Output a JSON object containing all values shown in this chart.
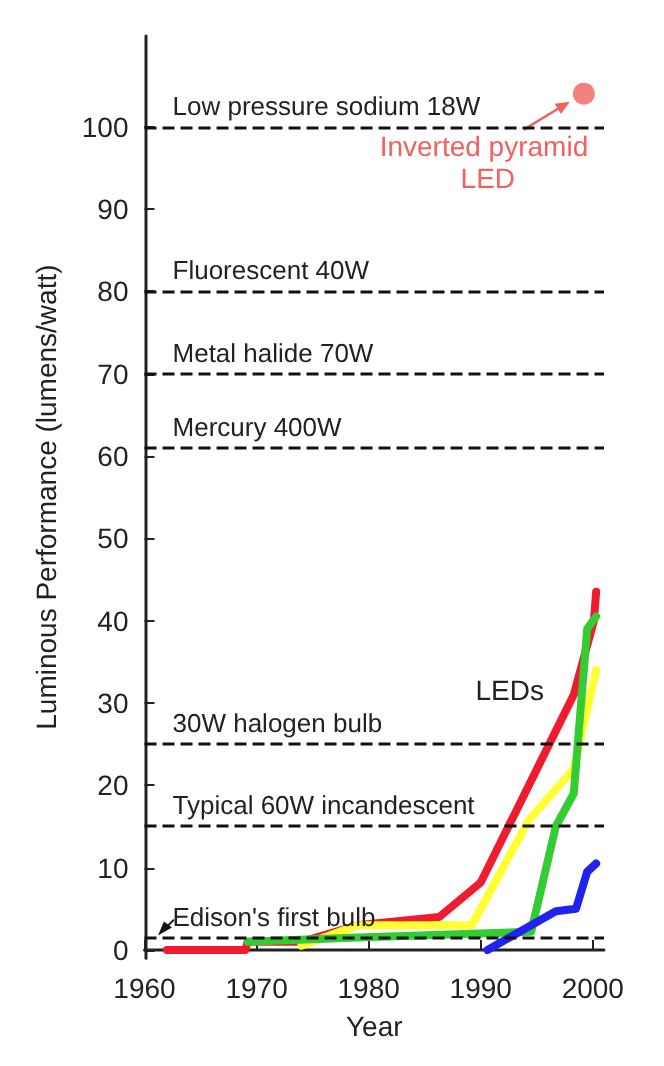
{
  "chart_data": {
    "type": "line",
    "xlabel": "Year",
    "ylabel": "Luminous Performance (lumens/watt)",
    "xlim": [
      1960,
      2001
    ],
    "xticks": [
      1960,
      1970,
      1980,
      1990,
      2000
    ],
    "ylim": [
      -1,
      111
    ],
    "yticks": [
      0,
      10,
      20,
      30,
      40,
      50,
      60,
      70,
      80,
      90,
      100
    ],
    "grid": false,
    "marker": "none",
    "line_style": "solid",
    "series": [
      {
        "color": "#ee1c2e",
        "x": [
          1962,
          1969,
          1969.2,
          1974,
          1979,
          1986.3,
          1990,
          1998.3,
          2000.1,
          2000.3
        ],
        "values": [
          0,
          0,
          1,
          1,
          3,
          4,
          8.2,
          31,
          40,
          43.5
        ]
      },
      {
        "color": "#ffff33",
        "x": [
          1974,
          1979,
          1989.2,
          1994.3,
          1998.3,
          2000.3
        ],
        "values": [
          0.5,
          3,
          3,
          15.8,
          22,
          34
        ]
      },
      {
        "color": "#33cc33",
        "x": [
          1969.2,
          1979,
          1994.5,
          1996.7,
          1998.3,
          1999.5,
          2000.3
        ],
        "values": [
          1,
          1.5,
          2.2,
          15,
          19,
          39,
          40.5
        ]
      },
      {
        "color": "#2222ee",
        "x": [
          1990.6,
          1996.7,
          1998.5,
          1999.5,
          2000.3
        ],
        "values": [
          0,
          4.7,
          5,
          9.5,
          10.5
        ]
      },
      {
        "type": "scatter",
        "marker": "circle",
        "color": "#f26060",
        "x": [
          1999.2
        ],
        "values": [
          104
        ]
      }
    ],
    "ref_lines": [
      {
        "axis": "y",
        "value": 100,
        "label": "Low pressure sodium 18W"
      },
      {
        "axis": "y",
        "value": 80,
        "label": "Fluorescent 40W"
      },
      {
        "axis": "y",
        "value": 70,
        "label": "Metal halide 70W"
      },
      {
        "axis": "y",
        "value": 61,
        "label": "Mercury 400W"
      },
      {
        "axis": "y",
        "value": 25,
        "label": "30W halogen bulb"
      },
      {
        "axis": "y",
        "value": 15,
        "label": "Typical 60W incandescent"
      },
      {
        "axis": "y",
        "value": 1.5,
        "label": "Edison's first bulb"
      }
    ],
    "annotations": [
      {
        "text": "Inverted pyramid LED",
        "x": 1999.2,
        "y": 104
      },
      "LEDs"
    ]
  }
}
